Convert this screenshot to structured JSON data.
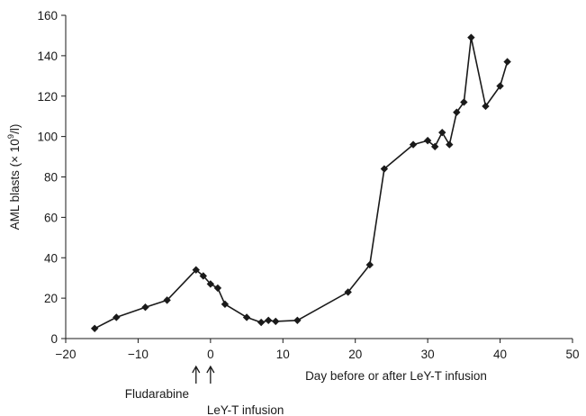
{
  "chart_data": {
    "type": "line",
    "title": "",
    "xlabel": "Day before or after LeY-T infusion",
    "ylabel_main": "AML blasts (× 10",
    "ylabel_sup": "9",
    "ylabel_tail": "/l)",
    "xlim": [
      -20,
      50
    ],
    "ylim": [
      0,
      160
    ],
    "xticks": [
      -20,
      -10,
      0,
      10,
      20,
      30,
      40,
      50
    ],
    "xtick_labels": [
      "−20",
      "−10",
      "0",
      "10",
      "20",
      "30",
      "40",
      "50"
    ],
    "yticks": [
      0,
      20,
      40,
      60,
      80,
      100,
      120,
      140,
      160
    ],
    "ytick_labels": [
      "0",
      "20",
      "40",
      "60",
      "80",
      "100",
      "120",
      "140",
      "160"
    ],
    "grid": false,
    "legend": "none",
    "marker": "diamond",
    "series": [
      {
        "x": [
          -16,
          -13,
          -9,
          -6,
          -2,
          -1,
          0,
          1,
          2,
          5,
          7,
          8,
          9,
          12,
          19,
          22,
          24,
          28,
          30,
          31,
          32,
          33,
          34,
          35,
          36,
          38,
          40,
          41
        ],
        "y": [
          5,
          10.5,
          15.5,
          19,
          34,
          31,
          27,
          25,
          17,
          10.5,
          8,
          9,
          8.5,
          9,
          23,
          36.5,
          84,
          96,
          98,
          95,
          102,
          96,
          112,
          117,
          149,
          115,
          125,
          137
        ]
      }
    ],
    "annotations": [
      {
        "label": "Fludarabine",
        "x": -2
      },
      {
        "label": "LeY-T infusion",
        "x": 0
      }
    ],
    "colors": {
      "line": "#1a1a1a",
      "marker": "#1a1a1a",
      "axis": "#1a1a1a"
    }
  }
}
